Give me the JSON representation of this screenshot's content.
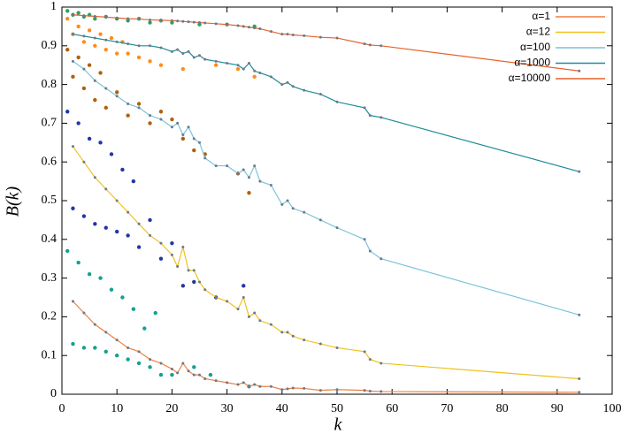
{
  "chart_data": {
    "type": "line",
    "x_label": "k",
    "y_label": "B(k)",
    "xlim": [
      0,
      100
    ],
    "ylim": [
      0,
      1
    ],
    "xticks": [
      0,
      10,
      20,
      30,
      40,
      50,
      60,
      70,
      80,
      90,
      100
    ],
    "yticks": [
      0,
      0.1,
      0.2,
      0.3,
      0.4,
      0.5,
      0.6,
      0.7,
      0.8,
      0.9,
      1
    ],
    "legend": "upper right",
    "x": [
      2,
      4,
      6,
      8,
      10,
      12,
      14,
      16,
      18,
      20,
      21,
      22,
      23,
      24,
      25,
      26,
      28,
      30,
      32,
      33,
      34,
      35,
      36,
      38,
      40,
      41,
      42,
      44,
      47,
      50,
      55,
      56,
      58,
      94
    ],
    "series": [
      {
        "name": "α=1",
        "color": "#f07f3c",
        "values": [
          0.24,
          0.21,
          0.18,
          0.16,
          0.14,
          0.12,
          0.11,
          0.09,
          0.08,
          0.065,
          0.055,
          0.08,
          0.06,
          0.05,
          0.05,
          0.04,
          0.035,
          0.03,
          0.025,
          0.03,
          0.02,
          0.025,
          0.02,
          0.02,
          0.012,
          0.014,
          0.016,
          0.015,
          0.01,
          0.012,
          0.01,
          0.008,
          0.007,
          0.005
        ]
      },
      {
        "name": "α=12",
        "color": "#f2c01e",
        "values": [
          0.64,
          0.6,
          0.56,
          0.53,
          0.5,
          0.47,
          0.44,
          0.41,
          0.39,
          0.36,
          0.33,
          0.38,
          0.32,
          0.32,
          0.29,
          0.27,
          0.25,
          0.24,
          0.22,
          0.25,
          0.2,
          0.21,
          0.19,
          0.18,
          0.16,
          0.16,
          0.15,
          0.14,
          0.13,
          0.12,
          0.11,
          0.09,
          0.08,
          0.04
        ]
      },
      {
        "name": "α=100",
        "color": "#7cc4da",
        "values": [
          0.86,
          0.84,
          0.81,
          0.79,
          0.77,
          0.75,
          0.74,
          0.72,
          0.71,
          0.69,
          0.7,
          0.67,
          0.69,
          0.66,
          0.65,
          0.61,
          0.59,
          0.59,
          0.57,
          0.58,
          0.56,
          0.59,
          0.55,
          0.54,
          0.49,
          0.5,
          0.48,
          0.47,
          0.45,
          0.43,
          0.4,
          0.37,
          0.35,
          0.205
        ]
      },
      {
        "name": "α=1000",
        "color": "#1f8c98",
        "values": [
          0.93,
          0.925,
          0.92,
          0.915,
          0.91,
          0.905,
          0.9,
          0.9,
          0.895,
          0.885,
          0.89,
          0.88,
          0.885,
          0.87,
          0.875,
          0.865,
          0.86,
          0.855,
          0.85,
          0.84,
          0.855,
          0.835,
          0.83,
          0.82,
          0.8,
          0.805,
          0.795,
          0.785,
          0.775,
          0.755,
          0.74,
          0.72,
          0.715,
          0.575
        ]
      },
      {
        "name": "α=10000",
        "color": "#e8622a",
        "values": [
          0.98,
          0.978,
          0.976,
          0.974,
          0.972,
          0.97,
          0.969,
          0.967,
          0.966,
          0.965,
          0.964,
          0.963,
          0.962,
          0.961,
          0.96,
          0.959,
          0.957,
          0.955,
          0.952,
          0.95,
          0.948,
          0.946,
          0.944,
          0.937,
          0.93,
          0.93,
          0.928,
          0.926,
          0.922,
          0.92,
          0.905,
          0.902,
          0.9,
          0.835
        ]
      }
    ],
    "scatter": [
      {
        "color": "#2ca05a",
        "x": [
          1,
          2,
          3,
          4,
          5,
          6,
          8,
          10,
          12,
          14,
          16,
          18,
          20,
          25,
          30,
          35
        ],
        "y": [
          0.99,
          0.98,
          0.985,
          0.975,
          0.98,
          0.97,
          0.975,
          0.97,
          0.965,
          0.97,
          0.96,
          0.965,
          0.96,
          0.955,
          0.955,
          0.95
        ]
      },
      {
        "color": "#ff8c1a",
        "x": [
          1,
          2,
          3,
          4,
          5,
          6,
          7,
          8,
          9,
          10,
          11,
          12,
          14,
          16,
          18,
          22,
          28,
          32,
          35
        ],
        "y": [
          0.97,
          0.93,
          0.95,
          0.91,
          0.94,
          0.9,
          0.93,
          0.89,
          0.92,
          0.88,
          0.91,
          0.88,
          0.87,
          0.86,
          0.85,
          0.84,
          0.85,
          0.84,
          0.82
        ]
      },
      {
        "color": "#b0600c",
        "x": [
          1,
          2,
          3,
          4,
          5,
          6,
          7,
          8,
          10,
          12,
          14,
          16,
          18,
          20,
          22,
          24,
          26,
          32,
          34
        ],
        "y": [
          0.89,
          0.82,
          0.87,
          0.79,
          0.85,
          0.76,
          0.83,
          0.74,
          0.78,
          0.72,
          0.75,
          0.7,
          0.73,
          0.71,
          0.66,
          0.63,
          0.62,
          0.57,
          0.52
        ]
      },
      {
        "color": "#2236a8",
        "x": [
          1,
          2,
          3,
          4,
          5,
          6,
          7,
          8,
          9,
          10,
          11,
          12,
          13,
          14,
          16,
          18,
          20,
          22,
          24,
          28,
          33
        ],
        "y": [
          0.73,
          0.48,
          0.7,
          0.46,
          0.66,
          0.44,
          0.65,
          0.43,
          0.62,
          0.42,
          0.58,
          0.41,
          0.55,
          0.38,
          0.45,
          0.35,
          0.39,
          0.28,
          0.29,
          0.25,
          0.28
        ]
      },
      {
        "color": "#14a090",
        "x": [
          1,
          2,
          3,
          4,
          5,
          6,
          7,
          8,
          9,
          10,
          11,
          12,
          13,
          14,
          15,
          16,
          17,
          18,
          20,
          24,
          27,
          34
        ],
        "y": [
          0.37,
          0.13,
          0.34,
          0.12,
          0.31,
          0.12,
          0.3,
          0.11,
          0.27,
          0.1,
          0.25,
          0.09,
          0.22,
          0.08,
          0.17,
          0.07,
          0.21,
          0.05,
          0.05,
          0.07,
          0.05,
          0.02
        ]
      }
    ]
  }
}
